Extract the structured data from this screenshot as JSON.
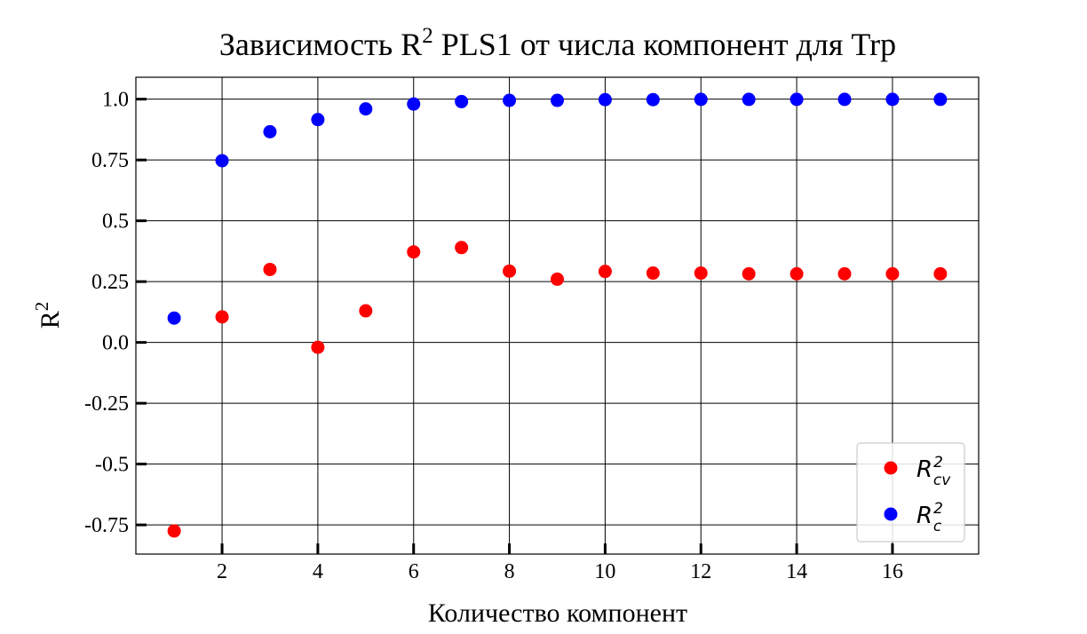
{
  "chart_data": {
    "type": "scatter",
    "title": "Зависимость R",
    "title_sup": "2",
    "title_rest": " PLS1 от числа компонент для Trp",
    "xlabel": "Количество компонент",
    "ylabel": "R",
    "ylabel_sup": "2",
    "xlim": [
      0.2,
      17.8
    ],
    "ylim": [
      -0.87,
      1.09
    ],
    "xticks": [
      2,
      4,
      6,
      8,
      10,
      12,
      14,
      16
    ],
    "xtick_labels": [
      "2",
      "4",
      "6",
      "8",
      "10",
      "12",
      "14",
      "16"
    ],
    "yticks": [
      1.0,
      0.75,
      0.5,
      0.25,
      0.0,
      -0.25,
      -0.5,
      -0.75
    ],
    "ytick_labels": [
      "1.0",
      "0.75",
      "0.5",
      "0.25",
      "0.0",
      "-0.25",
      "-0.5",
      "-0.75"
    ],
    "grid": true,
    "legend_position": "bottom-right",
    "series": [
      {
        "name": "R_cv^2",
        "legend_main": "R",
        "legend_sup": "2",
        "legend_sub": "cv",
        "color": "#ff0000",
        "x": [
          1,
          2,
          3,
          4,
          5,
          6,
          7,
          8,
          9,
          10,
          11,
          12,
          13,
          14,
          15,
          16,
          17
        ],
        "y": [
          -0.775,
          0.105,
          0.3,
          -0.02,
          0.13,
          0.372,
          0.39,
          0.293,
          0.26,
          0.292,
          0.285,
          0.285,
          0.282,
          0.282,
          0.282,
          0.282,
          0.282
        ]
      },
      {
        "name": "R_c^2",
        "legend_main": "R",
        "legend_sup": "2",
        "legend_sub": "c",
        "color": "#0000ff",
        "x": [
          1,
          2,
          3,
          4,
          5,
          6,
          7,
          8,
          9,
          10,
          11,
          12,
          13,
          14,
          15,
          16,
          17
        ],
        "y": [
          0.1,
          0.747,
          0.866,
          0.916,
          0.96,
          0.98,
          0.99,
          0.995,
          0.995,
          0.998,
          0.998,
          0.999,
          0.999,
          0.999,
          0.999,
          0.999,
          0.999
        ]
      }
    ]
  }
}
